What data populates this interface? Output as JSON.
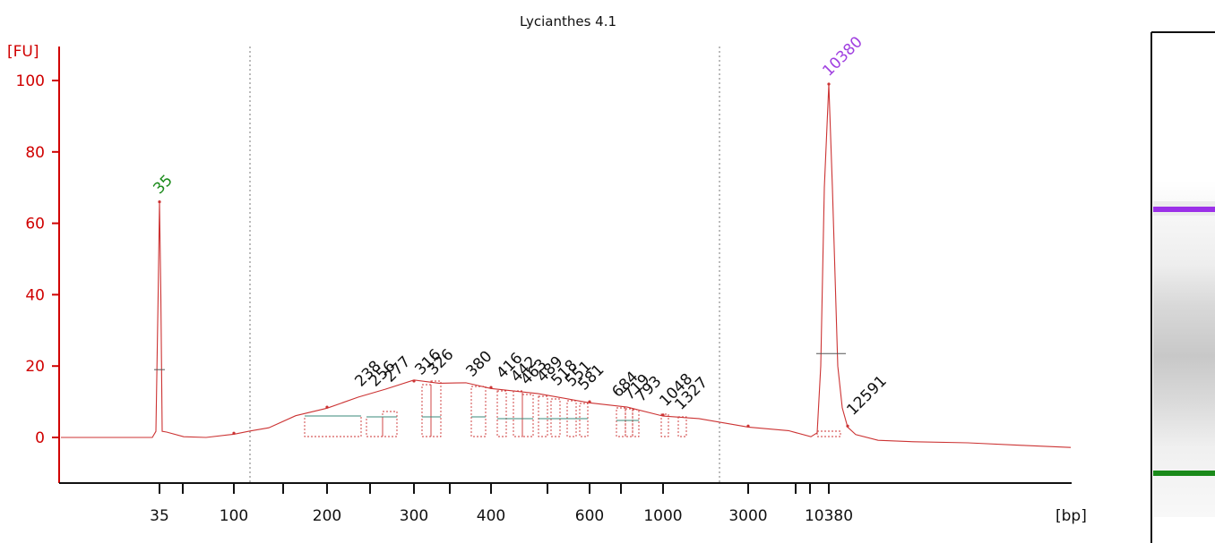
{
  "chart_data": {
    "type": "line",
    "title": "Lycianthes 4.1",
    "ylabel": "[FU]",
    "xlabel": "[bp]",
    "ylim": [
      -12,
      110
    ],
    "y_ticks": [
      0,
      20,
      40,
      60,
      80,
      100
    ],
    "x_tick_labels": [
      "35",
      "100",
      "200",
      "300",
      "400",
      "600",
      "1000",
      "3000",
      "10380"
    ],
    "markers": [
      {
        "label": "35",
        "color": "#1a8a1a"
      },
      {
        "label": "10380",
        "color": "#a040e0"
      }
    ],
    "peak_labels": [
      "238",
      "256",
      "277",
      "316",
      "326",
      "380",
      "416",
      "442",
      "463",
      "489",
      "518",
      "551",
      "581",
      "684",
      "719",
      "793",
      "1048",
      "1327",
      "12591"
    ],
    "series": [
      {
        "x": [
          "35",
          "100",
          "200",
          "300",
          "400",
          "600",
          "1000",
          "3000",
          "10380",
          "12591"
        ],
        "values": [
          66,
          1.2,
          8.5,
          15.8,
          14,
          10,
          6.3,
          3.2,
          99,
          3.2
        ]
      }
    ],
    "colors": {
      "trace": "#cc3333",
      "axes": "#d00000",
      "lower_marker_band": "#1a8a1a",
      "upper_marker_band": "#9b30e8"
    },
    "gel_lane": {
      "bands": [
        "upper-marker",
        "lower-marker"
      ]
    },
    "grid": false
  }
}
